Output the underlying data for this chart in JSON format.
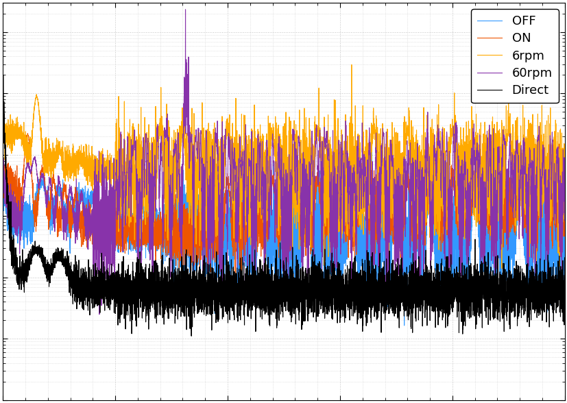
{
  "legend_labels": [
    "OFF",
    "ON",
    "6rpm",
    "60rpm",
    "Direct"
  ],
  "colors": [
    "#3399ff",
    "#ee5500",
    "#ffaa00",
    "#8833aa",
    "#000000"
  ],
  "linewidths": [
    0.8,
    0.8,
    0.8,
    0.8,
    0.8
  ],
  "xlim": [
    0,
    500
  ],
  "background_color": "#ffffff",
  "grid_color": "#bbbbbb",
  "legend_loc": "upper right",
  "figsize": [
    8.28,
    5.88
  ],
  "dpi": 100
}
